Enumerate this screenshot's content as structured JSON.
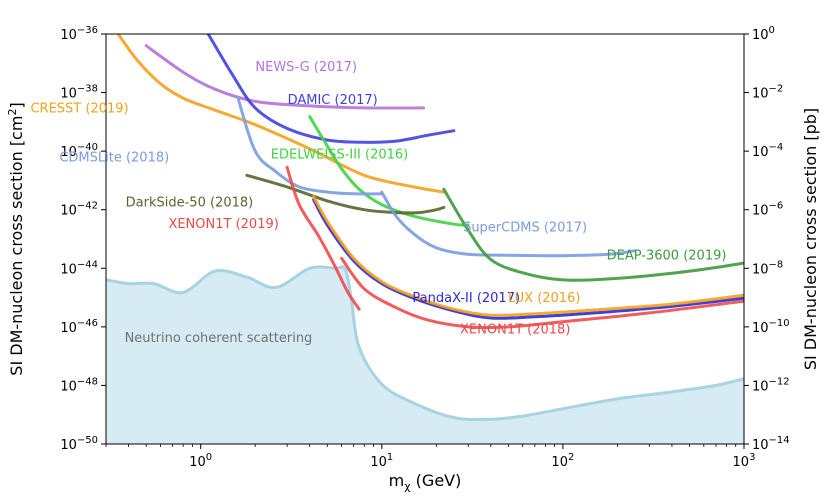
{
  "chart_data": {
    "type": "line",
    "title": "",
    "xlabel": "m",
    "xlabel_sub": "χ",
    "xlabel_unit": " (GeV)",
    "ylabel": "SI DM-nucleon cross section [cm",
    "ylabel_sup": "2",
    "ylabel_end": "]",
    "ylabel_right": "SI DM-nucleon cross section [pb]",
    "x_scale": "log",
    "y_scale": "log",
    "xlim": [
      0.3,
      1000
    ],
    "ylim": [
      1e-50,
      1e-36
    ],
    "grid": false,
    "x_ticks": [
      {
        "value": 1,
        "base": "10",
        "exp": "0"
      },
      {
        "value": 10,
        "base": "10",
        "exp": "1"
      },
      {
        "value": 100,
        "base": "10",
        "exp": "2"
      },
      {
        "value": 1000,
        "base": "10",
        "exp": "3"
      }
    ],
    "y_ticks_left": [
      {
        "value": 1e-50,
        "base": "10",
        "exp": "−50"
      },
      {
        "value": 1e-48,
        "base": "10",
        "exp": "−48"
      },
      {
        "value": 1e-46,
        "base": "10",
        "exp": "−46"
      },
      {
        "value": 1e-44,
        "base": "10",
        "exp": "−44"
      },
      {
        "value": 1e-42,
        "base": "10",
        "exp": "−42"
      },
      {
        "value": 1e-40,
        "base": "10",
        "exp": "−40"
      },
      {
        "value": 1e-38,
        "base": "10",
        "exp": "−38"
      },
      {
        "value": 1e-36,
        "base": "10",
        "exp": "−36"
      }
    ],
    "y_ticks_right": [
      {
        "value": 1e-50,
        "base": "10",
        "exp": "−14"
      },
      {
        "value": 1e-48,
        "base": "10",
        "exp": "−12"
      },
      {
        "value": 1e-46,
        "base": "10",
        "exp": "−10"
      },
      {
        "value": 1e-44,
        "base": "10",
        "exp": "−8"
      },
      {
        "value": 1e-42,
        "base": "10",
        "exp": "−6"
      },
      {
        "value": 1e-40,
        "base": "10",
        "exp": "−4"
      },
      {
        "value": 1e-38,
        "base": "10",
        "exp": "−2"
      },
      {
        "value": 1e-36,
        "base": "10",
        "exp": "0"
      }
    ],
    "neutrino_floor": {
      "name": "Neutrino coherent scattering",
      "fill": "#d6ebf3",
      "stroke": "#a8d3e0",
      "text_color": "#707070",
      "label_x": 0.38,
      "label_y": 3e-47,
      "points": [
        [
          0.3,
          4e-45
        ],
        [
          0.4,
          3e-45
        ],
        [
          0.55,
          3e-45
        ],
        [
          0.8,
          1.5e-45
        ],
        [
          1.2,
          8e-45
        ],
        [
          1.8,
          5e-45
        ],
        [
          2.6,
          2.2e-45
        ],
        [
          4.0,
          1e-44
        ],
        [
          5.5,
          1e-44
        ],
        [
          6.3,
          9e-45
        ],
        [
          6.8,
          8e-46
        ],
        [
          7.5,
          2e-47
        ],
        [
          10,
          1.1e-48
        ],
        [
          15,
          2.5e-49
        ],
        [
          25,
          8e-50
        ],
        [
          40,
          7e-50
        ],
        [
          60,
          9e-50
        ],
        [
          100,
          1.6e-49
        ],
        [
          200,
          3.5e-49
        ],
        [
          400,
          6e-49
        ],
        [
          700,
          1e-48
        ],
        [
          1000,
          1.7e-48
        ]
      ]
    },
    "series": [
      {
        "name": "NEWS-G (2017)",
        "color": "#b373d8",
        "label_x": 7.3,
        "label_y": 5.5e-38,
        "points": [
          [
            0.5,
            4e-37
          ],
          [
            0.8,
            5e-38
          ],
          [
            1.2,
            1.3e-38
          ],
          [
            2,
            5e-39
          ],
          [
            4,
            3.5e-39
          ],
          [
            8,
            3e-39
          ],
          [
            17,
            3e-39
          ]
        ]
      },
      {
        "name": "CRESST (2019)",
        "color": "#f5a11b",
        "label_x": 0.4,
        "label_y": 2.1e-39,
        "points": [
          [
            0.35,
            1e-36
          ],
          [
            0.45,
            1.2e-37
          ],
          [
            0.6,
            2e-38
          ],
          [
            0.8,
            6.5e-39
          ],
          [
            1.2,
            2.5e-39
          ],
          [
            2,
            8e-40
          ],
          [
            4,
            1.2e-40
          ],
          [
            8,
            1.5e-41
          ],
          [
            15,
            6e-42
          ],
          [
            22,
            4e-42
          ]
        ]
      },
      {
        "name": "DAMIC (2017)",
        "color": "#4040e0",
        "label_x": 9.5,
        "label_y": 4e-39,
        "points": [
          [
            1.1,
            1e-36
          ],
          [
            1.5,
            4e-38
          ],
          [
            2,
            3e-39
          ],
          [
            3,
            6e-40
          ],
          [
            5,
            2.4e-40
          ],
          [
            8,
            2e-40
          ],
          [
            12,
            2.2e-40
          ],
          [
            18,
            3.5e-40
          ],
          [
            25,
            5e-40
          ]
        ]
      },
      {
        "name": "EDELWEISS-III (2016)",
        "color": "#3fd33f",
        "label_x": 14,
        "label_y": 5.5e-41,
        "points": [
          [
            4,
            1.5e-39
          ],
          [
            5,
            1.5e-40
          ],
          [
            6,
            2.5e-41
          ],
          [
            7.5,
            5e-42
          ],
          [
            10,
            1.5e-42
          ],
          [
            15,
            6e-43
          ],
          [
            25,
            3.2e-43
          ],
          [
            30,
            3e-43
          ]
        ]
      },
      {
        "name": "CDMSLite (2018)",
        "color": "#7b9be0",
        "label_x": 0.67,
        "label_y": 4.5e-41,
        "points": [
          [
            1.6,
            7e-39
          ],
          [
            2,
            1e-40
          ],
          [
            2.6,
            2e-41
          ],
          [
            3.5,
            6e-42
          ],
          [
            5,
            4e-42
          ],
          [
            7,
            3.5e-42
          ],
          [
            10,
            3.5e-42
          ]
        ]
      },
      {
        "name": "DarkSide-50 (2018)",
        "color": "#56662f",
        "label_x": 1.95,
        "label_y": 1.3e-42,
        "points": [
          [
            1.8,
            1.5e-41
          ],
          [
            3,
            6e-42
          ],
          [
            5,
            2e-42
          ],
          [
            8,
            1e-42
          ],
          [
            12,
            8e-43
          ],
          [
            16,
            8e-43
          ],
          [
            20,
            1e-42
          ],
          [
            22,
            1.2e-42
          ]
        ]
      },
      {
        "name": "XENON1T (2019)",
        "color": "#ef4a4a",
        "label_x": 2.7,
        "label_y": 2.4e-43,
        "points": [
          [
            3,
            2.8e-41
          ],
          [
            3.5,
            1.5e-42
          ],
          [
            4.5,
            1.2e-43
          ],
          [
            5.5,
            1.2e-44
          ],
          [
            6.5,
            1.5e-45
          ],
          [
            7.5,
            4e-46
          ]
        ]
      },
      {
        "name": "SuperCDMS (2017)",
        "color": "#7b9be0",
        "label_x": 136,
        "label_y": 1.8e-43,
        "points": [
          [
            10,
            4e-42
          ],
          [
            12,
            6e-43
          ],
          [
            15,
            1.5e-43
          ],
          [
            20,
            5e-44
          ],
          [
            30,
            3e-44
          ],
          [
            50,
            2.8e-44
          ],
          [
            100,
            2.7e-44
          ],
          [
            180,
            3e-44
          ],
          [
            250,
            4e-44
          ]
        ]
      },
      {
        "name": "DEAP-3600 (2019)",
        "color": "#3d9a3d",
        "label_x": 800,
        "label_y": 2e-44,
        "points": [
          [
            22,
            5e-42
          ],
          [
            30,
            2e-43
          ],
          [
            40,
            2e-44
          ],
          [
            60,
            7e-45
          ],
          [
            100,
            4e-45
          ],
          [
            200,
            4.5e-45
          ],
          [
            500,
            8e-45
          ],
          [
            1000,
            1.5e-44
          ]
        ]
      },
      {
        "name": "PandaX-II (2017)",
        "color": "#2a2ad8",
        "label_x": 58,
        "label_y": 7e-46,
        "points": [
          [
            4.2,
            2.2e-42
          ],
          [
            5,
            3e-43
          ],
          [
            7,
            1.8e-44
          ],
          [
            10,
            3e-45
          ],
          [
            15,
            9.5e-46
          ],
          [
            25,
            3.5e-46
          ],
          [
            40,
            2e-46
          ],
          [
            70,
            2.2e-46
          ],
          [
            150,
            3e-46
          ],
          [
            400,
            5e-46
          ],
          [
            1000,
            9.5e-46
          ]
        ]
      },
      {
        "name": "LUX (2016)",
        "color": "#f5a11b",
        "label_x": 125,
        "label_y": 7e-46,
        "points": [
          [
            4.2,
            2.8e-42
          ],
          [
            5,
            4e-43
          ],
          [
            7,
            2.2e-44
          ],
          [
            10,
            3.5e-45
          ],
          [
            15,
            1.1e-45
          ],
          [
            25,
            4e-46
          ],
          [
            40,
            2.5e-46
          ],
          [
            70,
            2.8e-46
          ],
          [
            150,
            3.8e-46
          ],
          [
            400,
            6e-46
          ],
          [
            1000,
            1.2e-45
          ]
        ]
      },
      {
        "name": "XENON1T (2018)",
        "color": "#ef4a4a",
        "label_x": 110,
        "label_y": 6e-47,
        "points": [
          [
            6,
            2.2e-44
          ],
          [
            8,
            2e-45
          ],
          [
            12,
            4.5e-46
          ],
          [
            18,
            1.7e-46
          ],
          [
            30,
            1e-46
          ],
          [
            50,
            1e-46
          ],
          [
            100,
            1.5e-46
          ],
          [
            300,
            3e-46
          ],
          [
            1000,
            7.5e-46
          ]
        ]
      }
    ]
  }
}
